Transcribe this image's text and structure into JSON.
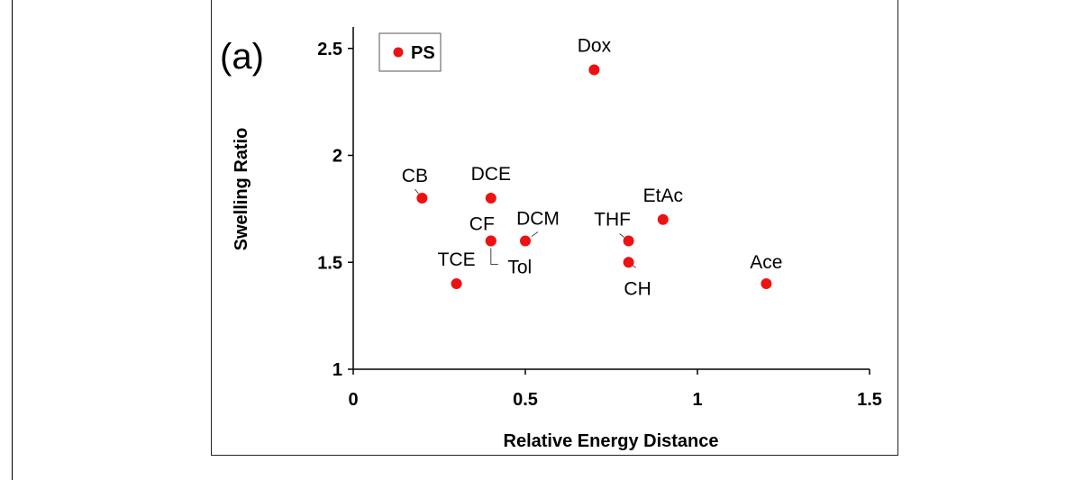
{
  "chart_data": {
    "type": "scatter",
    "panel_label": "(a)",
    "xlabel": "Relative Energy Distance",
    "ylabel": "Swelling Ratio",
    "xlim": [
      0,
      1.5
    ],
    "ylim": [
      1,
      2.6
    ],
    "x_ticks": [
      0,
      0.5,
      1,
      1.5
    ],
    "x_tick_labels": [
      "0",
      "0.5",
      "1",
      "1.5"
    ],
    "y_ticks": [
      1,
      1.5,
      2,
      2.5
    ],
    "y_tick_labels": [
      "1",
      "1.5",
      "2",
      "2.5"
    ],
    "grid": false,
    "legend_position": "top-left",
    "series": [
      {
        "name": "PS",
        "color": "#ee1111",
        "points": [
          {
            "label": "CB",
            "x": 0.2,
            "y": 1.8
          },
          {
            "label": "DCE",
            "x": 0.4,
            "y": 1.8
          },
          {
            "label": "CF",
            "x": 0.4,
            "y": 1.6
          },
          {
            "label": "Tol",
            "x": 0.4,
            "y": 1.6
          },
          {
            "label": "DCM",
            "x": 0.5,
            "y": 1.6
          },
          {
            "label": "TCE",
            "x": 0.3,
            "y": 1.4
          },
          {
            "label": "Dox",
            "x": 0.7,
            "y": 2.4
          },
          {
            "label": "THF",
            "x": 0.8,
            "y": 1.6
          },
          {
            "label": "CH",
            "x": 0.8,
            "y": 1.5
          },
          {
            "label": "EtAc",
            "x": 0.9,
            "y": 1.7
          },
          {
            "label": "Ace",
            "x": 1.2,
            "y": 1.4
          }
        ]
      }
    ]
  }
}
